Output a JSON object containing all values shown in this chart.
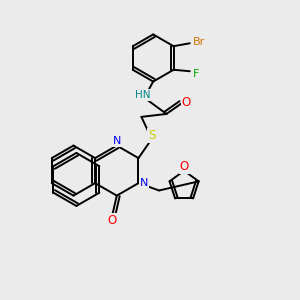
{
  "background_color": "#ebebeb",
  "atom_colors": {
    "C": "#000000",
    "N": "#0000ee",
    "O": "#ff0000",
    "S": "#cccc00",
    "F": "#00aa00",
    "Br": "#cc7700",
    "H": "#008888"
  },
  "bond_color": "#000000",
  "bond_width": 1.4
}
